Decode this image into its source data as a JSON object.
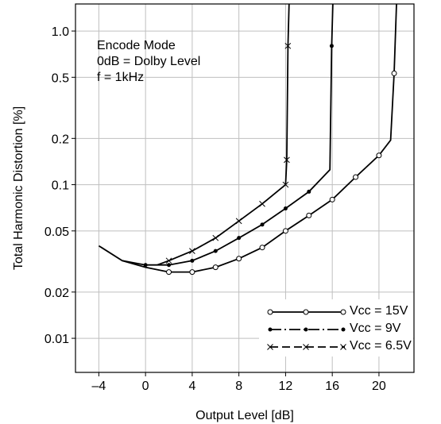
{
  "chart_data": {
    "type": "line",
    "xlabel": "Output Level [dB]",
    "ylabel": "Total Harmonic Distortion [%]",
    "xlim": [
      -6,
      23
    ],
    "ylim": [
      0.006,
      1.5
    ],
    "yscale": "log",
    "x_ticks": [
      -4,
      0,
      4,
      8,
      12,
      16,
      20
    ],
    "x_tick_labels": [
      "–4",
      "0",
      "4",
      "8",
      "12",
      "16",
      "20"
    ],
    "y_ticks": [
      0.01,
      0.02,
      0.05,
      0.1,
      0.2,
      0.5,
      1.0
    ],
    "y_tick_labels": [
      "0.01",
      "0.02",
      "0.05",
      "0.1",
      "0.2",
      "0.5",
      "1.0"
    ],
    "grid": true,
    "legend_position": "bottom-right",
    "annotations": [
      "Encode Mode",
      "0dB = Dolby Level",
      "f = 1kHz"
    ],
    "series": [
      {
        "name": "Vcc = 15V",
        "marker": "circle",
        "line_style": "solid",
        "x": [
          -4,
          -2,
          0,
          2,
          4,
          6,
          8,
          10,
          12,
          14,
          16,
          18,
          20,
          21,
          21.3,
          21.5
        ],
        "y": [
          0.04,
          0.032,
          0.029,
          0.027,
          0.027,
          0.029,
          0.033,
          0.039,
          0.05,
          0.063,
          0.08,
          0.112,
          0.155,
          0.195,
          0.53,
          1.5
        ],
        "markers_x": [
          2,
          4,
          6,
          8,
          10,
          12,
          14,
          16,
          18,
          20,
          21.3
        ],
        "markers_y": [
          0.027,
          0.027,
          0.029,
          0.033,
          0.039,
          0.05,
          0.063,
          0.08,
          0.112,
          0.155,
          0.53
        ]
      },
      {
        "name": "Vcc = 9V",
        "marker": "dot",
        "line_style": "dash-dot",
        "x": [
          -2,
          0,
          2,
          4,
          6,
          8,
          10,
          12,
          14,
          15.8,
          15.95,
          16.05
        ],
        "y": [
          0.032,
          0.03,
          0.03,
          0.032,
          0.037,
          0.045,
          0.055,
          0.07,
          0.09,
          0.125,
          0.8,
          1.5
        ],
        "markers_x": [
          0,
          2,
          4,
          6,
          8,
          10,
          12,
          14,
          15.95
        ],
        "markers_y": [
          0.03,
          0.03,
          0.032,
          0.037,
          0.045,
          0.055,
          0.07,
          0.09,
          0.8
        ]
      },
      {
        "name": "Vcc = 6.5V",
        "marker": "x",
        "line_style": "dash",
        "x": [
          1,
          2,
          4,
          6,
          8,
          10,
          12,
          12.1,
          12.2,
          12.3
        ],
        "y": [
          0.03,
          0.032,
          0.037,
          0.045,
          0.058,
          0.075,
          0.1,
          0.145,
          0.8,
          1.5
        ],
        "markers_x": [
          2,
          4,
          6,
          8,
          10,
          12,
          12.1,
          12.2
        ],
        "markers_y": [
          0.032,
          0.037,
          0.045,
          0.058,
          0.075,
          0.1,
          0.145,
          0.8
        ]
      }
    ]
  },
  "legend": [
    {
      "label": "Vcc = 15V",
      "marker": "circle"
    },
    {
      "label": "Vcc = 9V",
      "marker": "dot"
    },
    {
      "label": "Vcc = 6.5V",
      "marker": "x"
    }
  ]
}
